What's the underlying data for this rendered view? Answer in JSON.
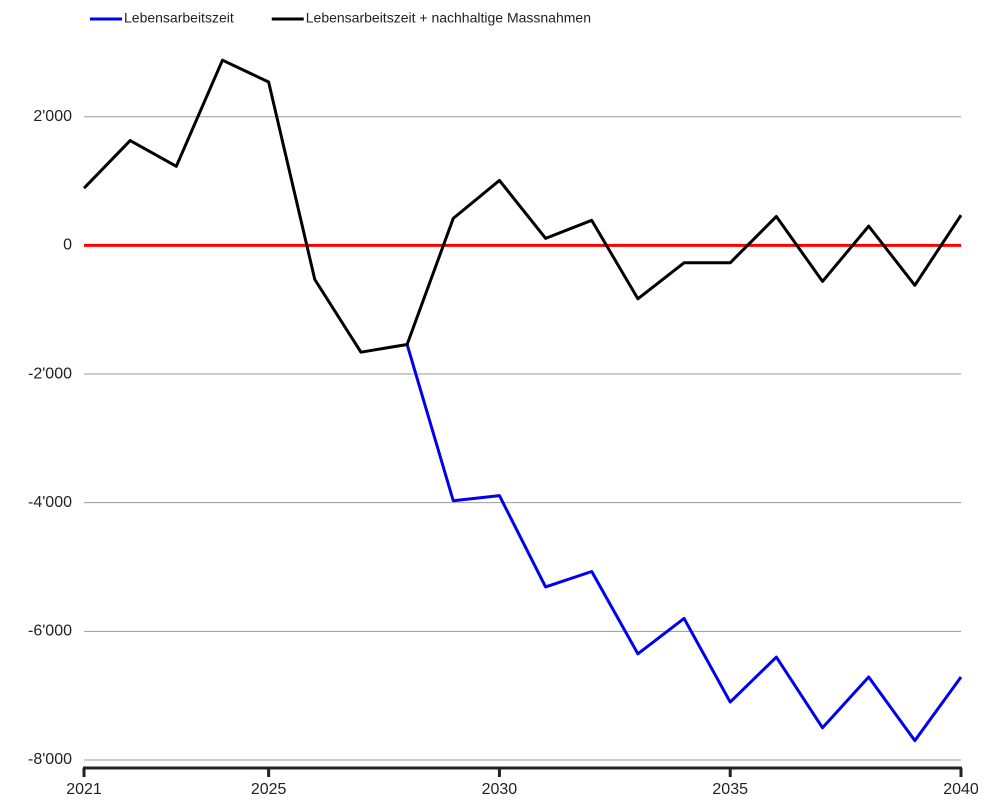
{
  "chart_data": {
    "type": "line",
    "x": [
      2021,
      2022,
      2023,
      2024,
      2025,
      2026,
      2027,
      2028,
      2029,
      2030,
      2031,
      2032,
      2033,
      2034,
      2035,
      2036,
      2037,
      2038,
      2039,
      2040
    ],
    "series": [
      {
        "name": "Lebensarbeitszeit",
        "color": "#0000ee",
        "values": [
          null,
          null,
          null,
          null,
          null,
          null,
          null,
          -1540,
          -3970,
          -3890,
          -5310,
          -5070,
          -6350,
          -5800,
          -7100,
          -6400,
          -7500,
          -6710,
          -7700,
          -6710
        ]
      },
      {
        "name": "Lebensarbeitszeit + nachhaltige Massnahmen",
        "color": "#000000",
        "values": [
          890,
          1630,
          1230,
          2880,
          2540,
          -530,
          -1660,
          -1540,
          420,
          1010,
          110,
          390,
          -830,
          -270,
          -270,
          450,
          -560,
          300,
          -620,
          470
        ]
      }
    ],
    "reference_line": {
      "value": 0,
      "color": "#ff0000"
    },
    "xlim": [
      2021,
      2040
    ],
    "xticks": [
      2021,
      2025,
      2030,
      2035,
      2040
    ],
    "ylim": [
      -8125,
      3800
    ],
    "yticks": [
      {
        "value": -8000,
        "label": "-8'000"
      },
      {
        "value": -6000,
        "label": "-6'000"
      },
      {
        "value": -4000,
        "label": "-4'000"
      },
      {
        "value": -2000,
        "label": "-2'000"
      },
      0,
      {
        "value": 2000,
        "label": "2'000"
      }
    ],
    "grid": true,
    "legend": "top"
  }
}
